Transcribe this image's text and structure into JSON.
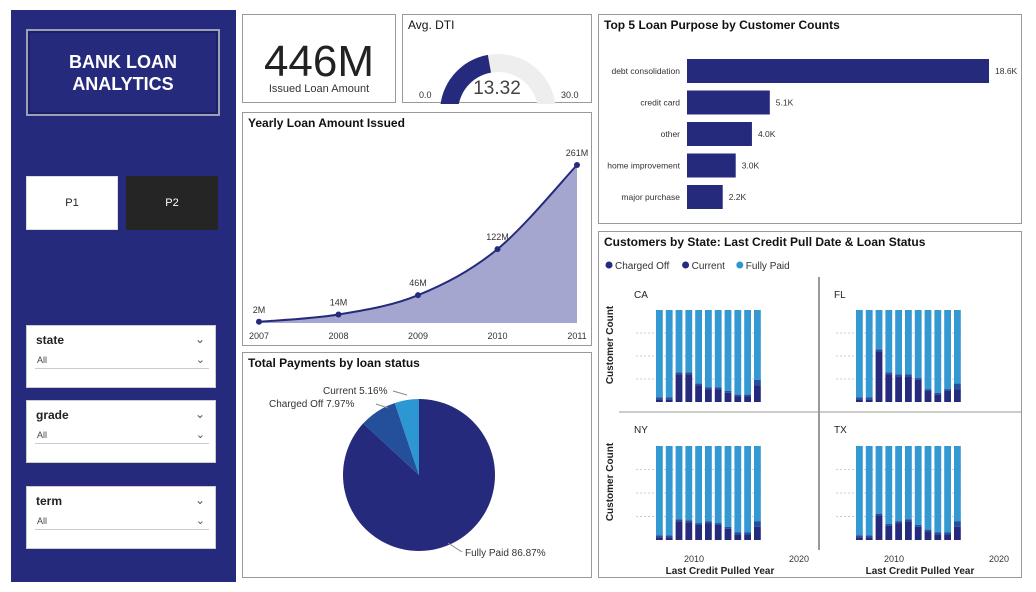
{
  "sidebar": {
    "title_line1": "BANK LOAN",
    "title_line2": "ANALYTICS",
    "buttons": [
      "P1",
      "P2"
    ],
    "slicers": [
      {
        "label": "state",
        "value": "All"
      },
      {
        "label": "grade",
        "value": "All"
      },
      {
        "label": "term",
        "value": "All"
      }
    ]
  },
  "kpi": {
    "value": "446M",
    "label": "Issued Loan Amount"
  },
  "dti": {
    "title": "Avg. DTI",
    "value": 13.32,
    "value_label": "13.32",
    "min_label": "0.0",
    "max_label": "30.0",
    "min": 0,
    "max": 30
  },
  "colors": {
    "navy": "#262a7d",
    "blue": "#2c97d2",
    "mid": "#244f9a",
    "area": "#a4a6cf",
    "light_bar": "#3498d3"
  },
  "yearly": {
    "title": "Yearly Loan Amount Issued",
    "chart_data": {
      "type": "area",
      "x": [
        "2007",
        "2008",
        "2009",
        "2010",
        "2011"
      ],
      "values": [
        2,
        14,
        46,
        122,
        261
      ],
      "labels": [
        "2M",
        "14M",
        "46M",
        "122M",
        "261M"
      ],
      "ylim": [
        0,
        261
      ]
    }
  },
  "purpose": {
    "title": "Top 5 Loan Purpose by Customer Counts",
    "chart_data": {
      "type": "bar",
      "categories": [
        "debt consolidation",
        "credit card",
        "other",
        "home improvement",
        "major purchase"
      ],
      "values": [
        18.6,
        5.1,
        4.0,
        3.0,
        2.2
      ],
      "labels": [
        "18.6K",
        "5.1K",
        "4.0K",
        "3.0K",
        "2.2K"
      ]
    }
  },
  "payments": {
    "title": "Total Payments by loan status",
    "chart_data": {
      "type": "pie",
      "slices": [
        {
          "name": "Fully Paid",
          "value": 86.87,
          "label": "Fully Paid 86.87%"
        },
        {
          "name": "Charged Off",
          "value": 7.97,
          "label": "Charged Off 7.97%"
        },
        {
          "name": "Current",
          "value": 5.16,
          "label": "Current 5.16%"
        }
      ]
    }
  },
  "states": {
    "title": "Customers by State: Last Credit Pull Date & Loan Status",
    "legend": [
      "Charged Off",
      "Current",
      "Fully Paid"
    ],
    "ylabel": "Customer Count",
    "xlabel": "Last Credit Pulled Year",
    "xticks": [
      "2010",
      "2020"
    ],
    "chart_data": {
      "type": "bar",
      "stacked": true,
      "percent": true,
      "panels": [
        {
          "name": "CA",
          "dark": [
            0.03,
            0.03,
            0.3,
            0.3,
            0.18,
            0.14,
            0.14,
            0.1,
            0.06,
            0.06,
            0.18
          ],
          "mid": [
            0.02,
            0.02,
            0.02,
            0.02,
            0.02,
            0.02,
            0.02,
            0.02,
            0.02,
            0.02,
            0.06
          ]
        },
        {
          "name": "FL",
          "dark": [
            0.03,
            0.03,
            0.55,
            0.3,
            0.28,
            0.28,
            0.24,
            0.12,
            0.08,
            0.12,
            0.14
          ],
          "mid": [
            0.02,
            0.02,
            0.02,
            0.02,
            0.02,
            0.02,
            0.02,
            0.02,
            0.02,
            0.02,
            0.06
          ]
        },
        {
          "name": "NY",
          "dark": [
            0.03,
            0.03,
            0.2,
            0.19,
            0.16,
            0.18,
            0.16,
            0.12,
            0.06,
            0.06,
            0.14
          ],
          "mid": [
            0.02,
            0.02,
            0.02,
            0.02,
            0.02,
            0.02,
            0.02,
            0.02,
            0.02,
            0.02,
            0.06
          ]
        },
        {
          "name": "TX",
          "dark": [
            0.03,
            0.03,
            0.26,
            0.15,
            0.18,
            0.2,
            0.14,
            0.09,
            0.06,
            0.06,
            0.14
          ],
          "mid": [
            0.02,
            0.02,
            0.02,
            0.02,
            0.02,
            0.02,
            0.02,
            0.02,
            0.02,
            0.02,
            0.06
          ]
        }
      ]
    }
  }
}
